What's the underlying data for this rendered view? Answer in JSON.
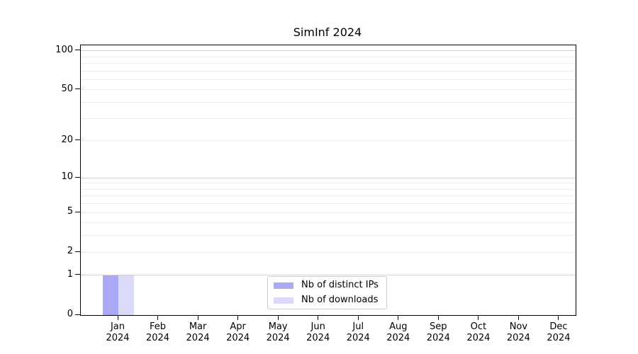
{
  "chart_data": {
    "type": "bar",
    "title": "SimInf 2024",
    "categories": [
      "Jan 2024",
      "Feb 2024",
      "Mar 2024",
      "Apr 2024",
      "May 2024",
      "Jun 2024",
      "Jul 2024",
      "Aug 2024",
      "Sep 2024",
      "Oct 2024",
      "Nov 2024",
      "Dec 2024"
    ],
    "series": [
      {
        "name": "Nb of distinct IPs",
        "color": "#a9a9f6",
        "values": [
          1,
          0,
          0,
          0,
          0,
          0,
          0,
          0,
          0,
          0,
          0,
          0
        ]
      },
      {
        "name": "Nb of downloads",
        "color": "#dbdbf9",
        "values": [
          1,
          0,
          0,
          0,
          0,
          0,
          0,
          0,
          0,
          0,
          0,
          0
        ]
      }
    ],
    "xlabel": "",
    "ylabel": "",
    "yscale": "log1p",
    "ylim": [
      0,
      110
    ],
    "yticks": [
      0,
      1,
      2,
      5,
      10,
      20,
      50,
      100
    ],
    "major_gridlines": [
      1,
      10,
      100
    ],
    "minor_gridlines": [
      2,
      3,
      4,
      5,
      6,
      7,
      8,
      9,
      20,
      30,
      40,
      50,
      60,
      70,
      80,
      90
    ],
    "grid": true,
    "legend_position": "lower center",
    "colors": {
      "spine": "#000000",
      "text": "#000000",
      "major_grid": "#d2d2d2",
      "minor_grid": "#ededed",
      "legend_border": "#cccccc",
      "background": "#ffffff"
    }
  }
}
